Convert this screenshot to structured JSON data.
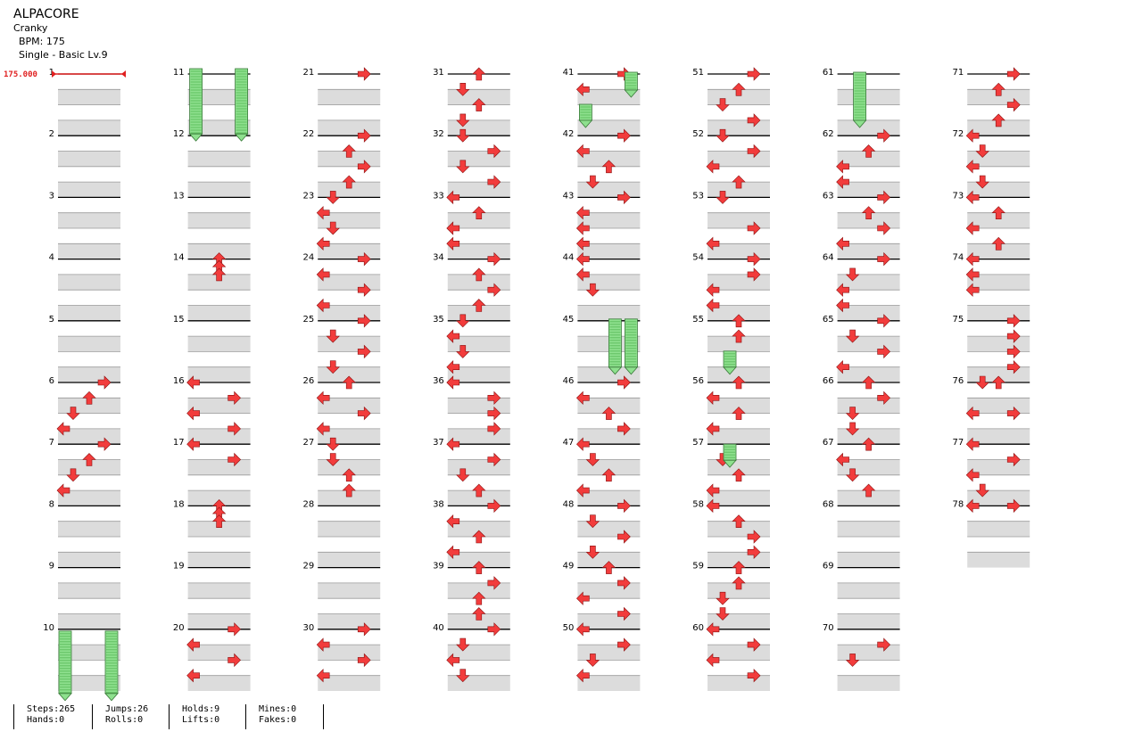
{
  "header": {
    "title": "ALPACORE",
    "artist": "Cranky",
    "bpm": "BPM: 175",
    "chart": "Single - Basic Lv.9"
  },
  "bpm_change": "175.000",
  "colors": {
    "arrow_red": "#f23c3c",
    "arrow_blue": "#2e58e8",
    "hold_green": "#8ee08e",
    "beat_band": "#dcdcdc"
  },
  "measures": [
    {
      "n": "1",
      "notes": []
    },
    {
      "n": "2",
      "notes": []
    },
    {
      "n": "3",
      "notes": []
    },
    {
      "n": "4",
      "notes": []
    },
    {
      "n": "5",
      "notes": []
    },
    {
      "n": "6",
      "notes": [
        [
          0,
          "R"
        ],
        [
          2,
          "U"
        ],
        [
          4,
          "D"
        ],
        [
          6,
          "L"
        ]
      ]
    },
    {
      "n": "7",
      "notes": [
        [
          0,
          "R"
        ],
        [
          2,
          "U"
        ],
        [
          4,
          "D"
        ],
        [
          6,
          "L"
        ]
      ]
    },
    {
      "n": "8",
      "notes": []
    },
    {
      "n": "9",
      "notes": []
    },
    {
      "n": "10",
      "notes": []
    },
    {
      "n": "11",
      "notes": []
    },
    {
      "n": "12",
      "notes": []
    },
    {
      "n": "13",
      "notes": []
    },
    {
      "n": "14",
      "notes": [
        [
          0,
          "U"
        ],
        [
          1,
          "U"
        ],
        [
          2,
          "U"
        ]
      ]
    },
    {
      "n": "15",
      "notes": []
    },
    {
      "n": "16",
      "notes": [
        [
          0,
          "L"
        ],
        [
          2,
          "R"
        ],
        [
          4,
          "L"
        ],
        [
          6,
          "R"
        ]
      ]
    },
    {
      "n": "17",
      "notes": [
        [
          0,
          "L"
        ],
        [
          2,
          "R"
        ]
      ]
    },
    {
      "n": "18",
      "notes": [
        [
          0,
          "U"
        ],
        [
          1,
          "U"
        ],
        [
          2,
          "U"
        ]
      ]
    },
    {
      "n": "19",
      "notes": []
    },
    {
      "n": "20",
      "notes": [
        [
          0,
          "R"
        ],
        [
          2,
          "L"
        ],
        [
          4,
          "R"
        ],
        [
          6,
          "L"
        ]
      ]
    },
    {
      "n": "21",
      "notes": [
        [
          0,
          "R"
        ]
      ]
    },
    {
      "n": "22",
      "notes": [
        [
          0,
          "R"
        ],
        [
          2,
          "U"
        ],
        [
          4,
          "R"
        ],
        [
          6,
          "U"
        ]
      ]
    },
    {
      "n": "23",
      "notes": [
        [
          0,
          "D"
        ],
        [
          2,
          "L"
        ],
        [
          4,
          "D"
        ],
        [
          6,
          "L"
        ]
      ]
    },
    {
      "n": "24",
      "notes": [
        [
          0,
          "R"
        ],
        [
          2,
          "L"
        ],
        [
          4,
          "R"
        ],
        [
          6,
          "L"
        ]
      ]
    },
    {
      "n": "25",
      "notes": [
        [
          0,
          "R"
        ],
        [
          2,
          "D"
        ],
        [
          4,
          "R"
        ],
        [
          6,
          "D"
        ]
      ]
    },
    {
      "n": "26",
      "notes": [
        [
          0,
          "U"
        ],
        [
          2,
          "L"
        ],
        [
          4,
          "R"
        ],
        [
          6,
          "L"
        ]
      ]
    },
    {
      "n": "27",
      "notes": [
        [
          0,
          "D"
        ],
        [
          2,
          "D"
        ],
        [
          4,
          "U"
        ],
        [
          6,
          "U"
        ]
      ]
    },
    {
      "n": "28",
      "notes": []
    },
    {
      "n": "29",
      "notes": []
    },
    {
      "n": "30",
      "notes": [
        [
          0,
          "R"
        ],
        [
          2,
          "L"
        ],
        [
          4,
          "R"
        ],
        [
          6,
          "L"
        ]
      ]
    },
    {
      "n": "31",
      "notes": [
        [
          0,
          "U"
        ],
        [
          2,
          "D"
        ],
        [
          4,
          "U"
        ],
        [
          6,
          "D"
        ]
      ]
    },
    {
      "n": "32",
      "notes": [
        [
          0,
          "D"
        ],
        [
          2,
          "R"
        ],
        [
          4,
          "D"
        ],
        [
          6,
          "R"
        ]
      ]
    },
    {
      "n": "33",
      "notes": [
        [
          0,
          "L"
        ],
        [
          2,
          "U"
        ],
        [
          4,
          "L"
        ],
        [
          6,
          "L"
        ]
      ]
    },
    {
      "n": "34",
      "notes": [
        [
          0,
          "R"
        ],
        [
          2,
          "U"
        ],
        [
          4,
          "R"
        ],
        [
          6,
          "U"
        ]
      ]
    },
    {
      "n": "35",
      "notes": [
        [
          0,
          "D"
        ],
        [
          2,
          "L"
        ],
        [
          4,
          "D"
        ],
        [
          6,
          "L"
        ]
      ]
    },
    {
      "n": "36",
      "notes": [
        [
          0,
          "L"
        ],
        [
          2,
          "R"
        ],
        [
          4,
          "R"
        ],
        [
          6,
          "R"
        ]
      ]
    },
    {
      "n": "37",
      "notes": [
        [
          0,
          "L"
        ],
        [
          2,
          "R"
        ],
        [
          4,
          "D"
        ],
        [
          6,
          "U"
        ]
      ]
    },
    {
      "n": "38",
      "notes": [
        [
          0,
          "R"
        ],
        [
          2,
          "L"
        ],
        [
          4,
          "U"
        ],
        [
          6,
          "L"
        ]
      ]
    },
    {
      "n": "39",
      "notes": [
        [
          0,
          "U"
        ],
        [
          2,
          "R"
        ],
        [
          4,
          "U"
        ],
        [
          6,
          "U"
        ]
      ]
    },
    {
      "n": "40",
      "notes": [
        [
          0,
          "R"
        ],
        [
          2,
          "D"
        ],
        [
          4,
          "L"
        ],
        [
          6,
          "D"
        ]
      ]
    },
    {
      "n": "41",
      "notes": [
        [
          0,
          "R"
        ],
        [
          2,
          "L"
        ]
      ]
    },
    {
      "n": "42",
      "notes": [
        [
          0,
          "R"
        ],
        [
          2,
          "L"
        ],
        [
          4,
          "U"
        ],
        [
          6,
          "D"
        ]
      ]
    },
    {
      "n": "43",
      "notes": [
        [
          0,
          "R"
        ],
        [
          2,
          "L"
        ],
        [
          4,
          "L"
        ],
        [
          6,
          "L"
        ]
      ]
    },
    {
      "n": "44",
      "notes": [
        [
          0,
          "L"
        ],
        [
          2,
          "L"
        ],
        [
          4,
          "D"
        ]
      ]
    },
    {
      "n": "45",
      "notes": []
    },
    {
      "n": "46",
      "notes": [
        [
          0,
          "R"
        ],
        [
          2,
          "L"
        ],
        [
          4,
          "U"
        ],
        [
          6,
          "R"
        ]
      ]
    },
    {
      "n": "47",
      "notes": [
        [
          0,
          "L"
        ],
        [
          2,
          "D"
        ],
        [
          4,
          "U"
        ],
        [
          6,
          "L"
        ]
      ]
    },
    {
      "n": "48",
      "notes": [
        [
          0,
          "R"
        ],
        [
          2,
          "D"
        ],
        [
          4,
          "R"
        ],
        [
          6,
          "D"
        ]
      ]
    },
    {
      "n": "49",
      "notes": [
        [
          0,
          "U"
        ],
        [
          2,
          "R"
        ],
        [
          4,
          "L"
        ],
        [
          6,
          "R"
        ]
      ]
    },
    {
      "n": "50",
      "notes": [
        [
          0,
          "L"
        ],
        [
          2,
          "R"
        ],
        [
          4,
          "D"
        ],
        [
          6,
          "L"
        ]
      ]
    },
    {
      "n": "51",
      "notes": [
        [
          0,
          "R"
        ],
        [
          2,
          "U"
        ],
        [
          4,
          "D"
        ],
        [
          6,
          "R"
        ]
      ]
    },
    {
      "n": "52",
      "notes": [
        [
          0,
          "D"
        ],
        [
          2,
          "R"
        ],
        [
          4,
          "L"
        ],
        [
          6,
          "U"
        ]
      ]
    },
    {
      "n": "53",
      "notes": [
        [
          0,
          "D"
        ],
        [
          4,
          "R"
        ],
        [
          6,
          "L"
        ]
      ]
    },
    {
      "n": "54",
      "notes": [
        [
          0,
          "R"
        ],
        [
          2,
          "R"
        ],
        [
          4,
          "L"
        ],
        [
          6,
          "L"
        ]
      ]
    },
    {
      "n": "55",
      "notes": [
        [
          0,
          "U"
        ],
        [
          2,
          "U"
        ]
      ]
    },
    {
      "n": "56",
      "notes": [
        [
          0,
          "U"
        ],
        [
          2,
          "L"
        ],
        [
          4,
          "U"
        ],
        [
          6,
          "L"
        ]
      ]
    },
    {
      "n": "57",
      "notes": [
        [
          2,
          "D"
        ],
        [
          4,
          "U"
        ],
        [
          6,
          "L"
        ]
      ]
    },
    {
      "n": "58",
      "notes": [
        [
          0,
          "L"
        ],
        [
          2,
          "U"
        ],
        [
          4,
          "R"
        ],
        [
          6,
          "R"
        ]
      ]
    },
    {
      "n": "59",
      "notes": [
        [
          0,
          "U"
        ],
        [
          2,
          "U"
        ],
        [
          4,
          "D"
        ],
        [
          6,
          "D"
        ]
      ]
    },
    {
      "n": "60",
      "notes": [
        [
          0,
          "L"
        ],
        [
          2,
          "R"
        ],
        [
          4,
          "L"
        ],
        [
          6,
          "R"
        ]
      ]
    },
    {
      "n": "61",
      "notes": []
    },
    {
      "n": "62",
      "notes": [
        [
          0,
          "R"
        ],
        [
          2,
          "U"
        ],
        [
          4,
          "L"
        ],
        [
          6,
          "L"
        ]
      ]
    },
    {
      "n": "63",
      "notes": [
        [
          0,
          "R"
        ],
        [
          2,
          "U"
        ],
        [
          4,
          "R"
        ],
        [
          6,
          "L"
        ]
      ]
    },
    {
      "n": "64",
      "notes": [
        [
          0,
          "R"
        ],
        [
          2,
          "D"
        ],
        [
          4,
          "L"
        ],
        [
          6,
          "L"
        ]
      ]
    },
    {
      "n": "65",
      "notes": [
        [
          0,
          "R"
        ],
        [
          2,
          "D"
        ],
        [
          4,
          "R"
        ],
        [
          6,
          "L"
        ]
      ]
    },
    {
      "n": "66",
      "notes": [
        [
          0,
          "U"
        ],
        [
          2,
          "R"
        ],
        [
          4,
          "D"
        ],
        [
          6,
          "D"
        ]
      ]
    },
    {
      "n": "67",
      "notes": [
        [
          0,
          "U"
        ],
        [
          2,
          "L"
        ],
        [
          4,
          "D"
        ],
        [
          6,
          "U"
        ]
      ]
    },
    {
      "n": "68",
      "notes": []
    },
    {
      "n": "69",
      "notes": []
    },
    {
      "n": "70",
      "notes": [
        [
          2,
          "R"
        ],
        [
          4,
          "D"
        ]
      ]
    },
    {
      "n": "71",
      "notes": [
        [
          0,
          "R"
        ],
        [
          2,
          "U"
        ],
        [
          4,
          "R"
        ],
        [
          6,
          "U"
        ]
      ]
    },
    {
      "n": "72",
      "notes": [
        [
          0,
          "L"
        ],
        [
          2,
          "D"
        ],
        [
          4,
          "L"
        ],
        [
          6,
          "D"
        ]
      ]
    },
    {
      "n": "73",
      "notes": [
        [
          0,
          "L"
        ],
        [
          2,
          "U"
        ],
        [
          4,
          "L"
        ],
        [
          6,
          "U"
        ]
      ]
    },
    {
      "n": "74",
      "notes": [
        [
          0,
          "L"
        ],
        [
          2,
          "L"
        ],
        [
          4,
          "L"
        ]
      ]
    },
    {
      "n": "75",
      "notes": [
        [
          0,
          "R"
        ],
        [
          2,
          "R"
        ],
        [
          4,
          "R"
        ],
        [
          6,
          "R"
        ]
      ]
    },
    {
      "n": "76",
      "notes": [
        [
          0,
          "D"
        ],
        [
          0,
          "U"
        ],
        [
          4,
          "L"
        ],
        [
          4,
          "R"
        ]
      ]
    },
    {
      "n": "77",
      "notes": [
        [
          0,
          "L"
        ],
        [
          2,
          "R"
        ],
        [
          4,
          "L"
        ],
        [
          6,
          "D"
        ]
      ]
    },
    {
      "n": "78",
      "notes": [
        [
          0,
          "L"
        ],
        [
          0,
          "R"
        ]
      ]
    }
  ],
  "stats": {
    "steps": "Steps:265",
    "hands": "Hands:0",
    "jumps": "Jumps:26",
    "rolls": "Rolls:0",
    "holds": "Holds:9",
    "lifts": "Lifts:0",
    "mines": "Mines:0",
    "fakes": "Fakes:0"
  }
}
